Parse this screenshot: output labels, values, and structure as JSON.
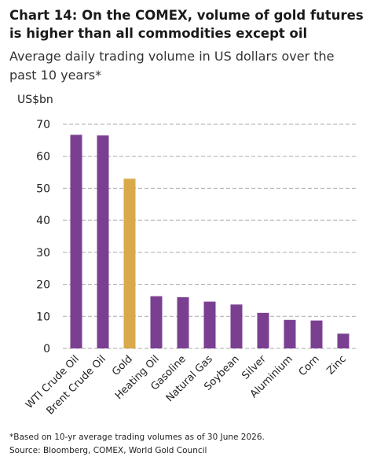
{
  "chart_data": {
    "type": "bar",
    "title": "Chart 14: On the COMEX, volume of gold futures is higher than all commodities except oil",
    "subtitle": "Average daily trading volume in US dollars over the past 10 years*",
    "y_label": "US$bn",
    "categories": [
      "WTI Crude Oil",
      "Brent Crude Oil",
      "Gold",
      "Heating Oil",
      "Gasoline",
      "Natural Gas",
      "Soybean",
      "Silver",
      "Aluminium",
      "Corn",
      "Zinc"
    ],
    "values": [
      66.7,
      66.5,
      53,
      16.3,
      16,
      14.6,
      13.7,
      11.1,
      8.9,
      8.7,
      4.6
    ],
    "colors": [
      "#7b3f91",
      "#7b3f91",
      "#d8aa4b",
      "#7b3f91",
      "#7b3f91",
      "#7b3f91",
      "#7b3f91",
      "#7b3f91",
      "#7b3f91",
      "#7b3f91",
      "#7b3f91"
    ],
    "ylim": [
      0,
      70
    ],
    "yticks": [
      0,
      10,
      20,
      30,
      40,
      50,
      60,
      70
    ],
    "grid": true,
    "footnote": "*Based on 10-yr average trading volumes as of 30 June 2026.",
    "source": "Source: Bloomberg, COMEX, World Gold Council"
  }
}
